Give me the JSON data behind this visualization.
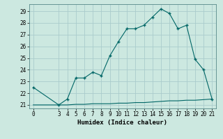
{
  "xlabel": "Humidex (Indice chaleur)",
  "background_color": "#cce8e0",
  "grid_color": "#aacccc",
  "line_color": "#006666",
  "marker_color": "#006666",
  "x_data": [
    0,
    3,
    4,
    5,
    6,
    7,
    8,
    9,
    10,
    11,
    12,
    13,
    14,
    15,
    16,
    17,
    18,
    19,
    20,
    21
  ],
  "y_main": [
    22.5,
    21.0,
    21.5,
    23.3,
    23.3,
    23.8,
    23.5,
    25.2,
    26.4,
    27.5,
    27.5,
    27.8,
    28.5,
    29.2,
    28.8,
    27.5,
    27.8,
    24.9,
    24.0,
    21.5
  ],
  "y_base": [
    21.0,
    21.0,
    21.0,
    21.05,
    21.05,
    21.1,
    21.1,
    21.1,
    21.15,
    21.15,
    21.2,
    21.2,
    21.25,
    21.3,
    21.35,
    21.35,
    21.4,
    21.4,
    21.45,
    21.5
  ],
  "xlim": [
    -0.5,
    21.5
  ],
  "ylim": [
    20.7,
    29.6
  ],
  "yticks": [
    21,
    22,
    23,
    24,
    25,
    26,
    27,
    28,
    29
  ],
  "xticks": [
    0,
    3,
    4,
    5,
    6,
    7,
    8,
    9,
    10,
    11,
    12,
    13,
    14,
    15,
    16,
    17,
    18,
    19,
    20,
    21
  ],
  "tick_fontsize": 5.5,
  "label_fontsize": 6.5
}
